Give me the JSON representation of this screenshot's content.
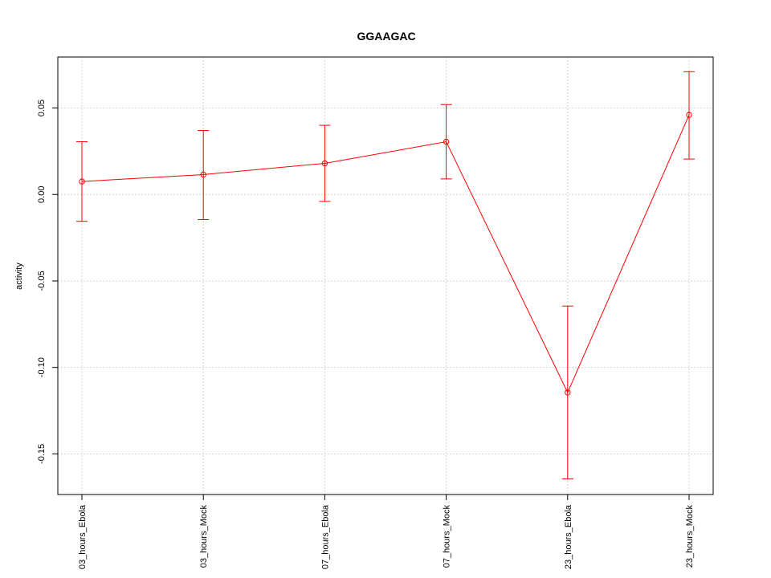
{
  "chart_data": {
    "type": "line",
    "title": "GGAAGAC",
    "xlabel": "",
    "ylabel": "activity",
    "categories": [
      "03_hours_Ebola",
      "03_hours_Mock",
      "07_hours_Ebola",
      "07_hours_Mock",
      "23_hours_Ebola",
      "23_hours_Mock"
    ],
    "series": [
      {
        "values": [
          0.0075,
          0.0115,
          0.018,
          0.0305,
          -0.1145,
          0.046
        ],
        "upper": [
          0.0305,
          0.037,
          0.04,
          0.052,
          -0.0645,
          0.071
        ],
        "lower": [
          -0.0155,
          -0.0145,
          -0.004,
          0.009,
          -0.1645,
          0.0205
        ],
        "color": "#ff0000"
      }
    ],
    "yticks": [
      -0.15,
      -0.1,
      -0.05,
      0.0,
      0.05
    ],
    "ytick_labels": [
      "-0.15",
      "-0.10",
      "-0.05",
      "0.00",
      "0.05"
    ],
    "ylim": [
      -0.1735,
      0.0795
    ],
    "grid": true,
    "grid_color": "#d3d3d3"
  }
}
